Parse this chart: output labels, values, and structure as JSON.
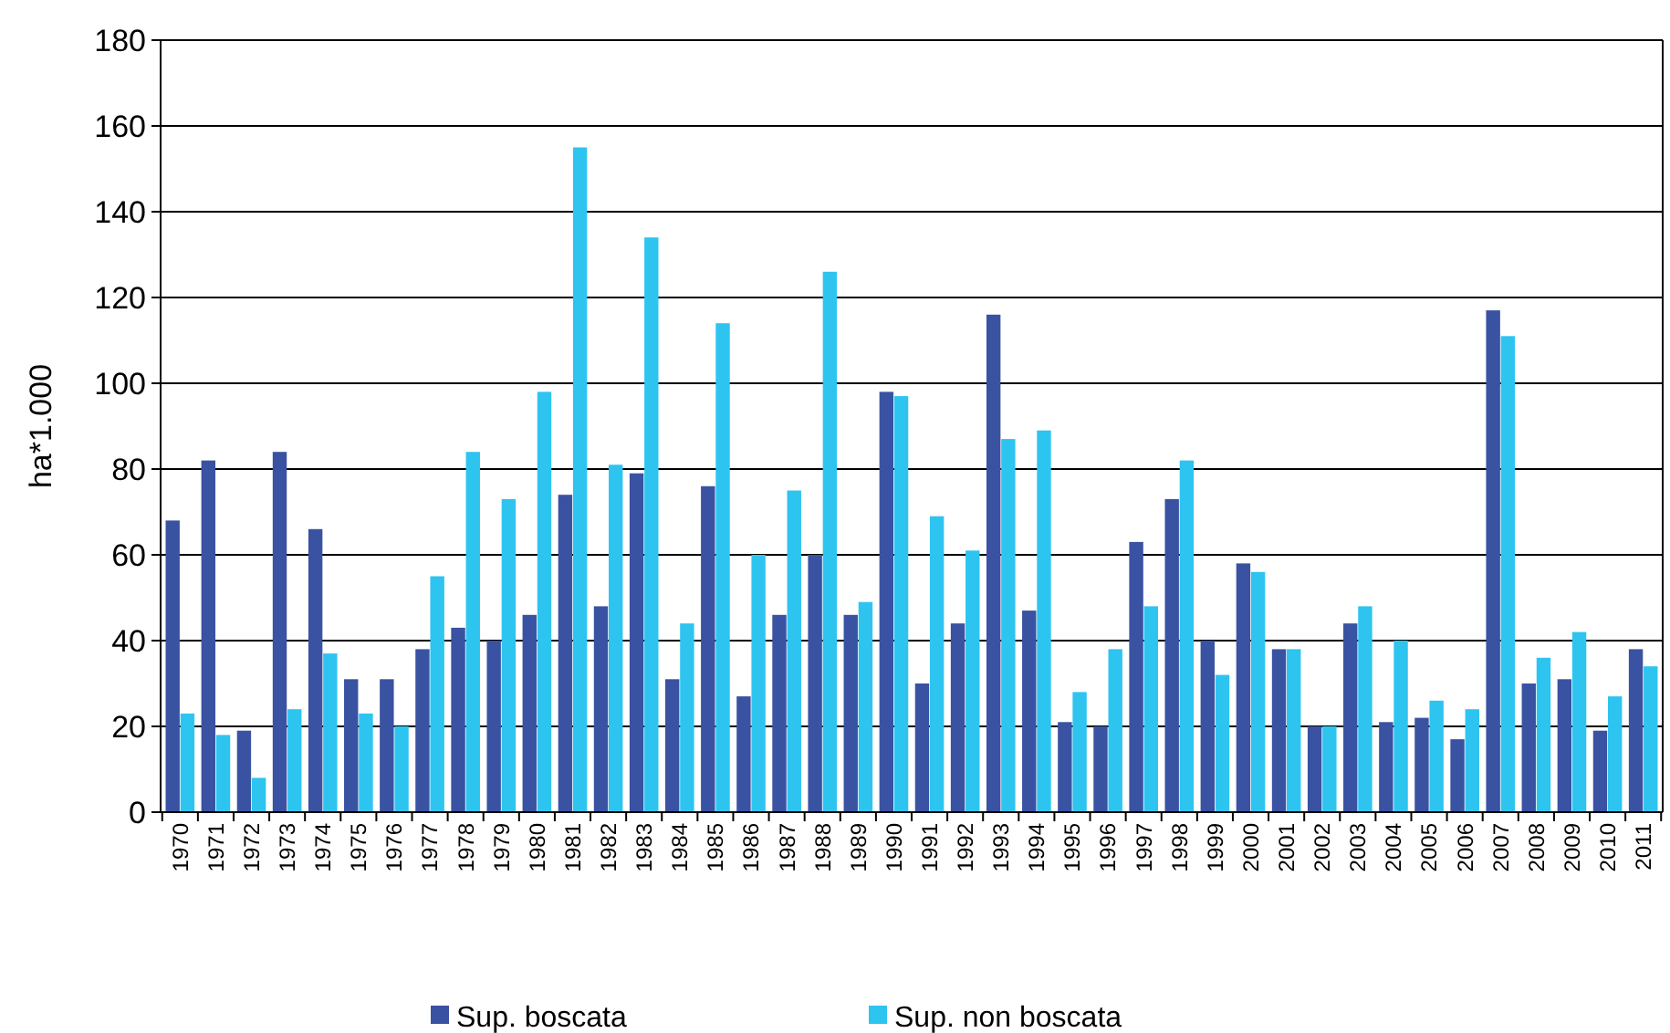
{
  "chart_data": {
    "type": "bar",
    "ylabel": "ha*1.000",
    "categories": [
      "1970",
      "1971",
      "1972",
      "1973",
      "1974",
      "1975",
      "1976",
      "1977",
      "1978",
      "1979",
      "1980",
      "1981",
      "1982",
      "1983",
      "1984",
      "1985",
      "1986",
      "1987",
      "1988",
      "1989",
      "1990",
      "1991",
      "1992",
      "1993",
      "1994",
      "1995",
      "1996",
      "1997",
      "1998",
      "1999",
      "2000",
      "2001",
      "2002",
      "2003",
      "2004",
      "2005",
      "2006",
      "2007",
      "2008",
      "2009",
      "2010",
      "2011"
    ],
    "series": [
      {
        "name": "Sup. boscata",
        "color": "#3a52a2",
        "values": [
          68,
          82,
          19,
          84,
          66,
          31,
          31,
          38,
          43,
          40,
          46,
          74,
          48,
          79,
          31,
          76,
          27,
          46,
          60,
          46,
          98,
          30,
          44,
          116,
          47,
          21,
          20,
          63,
          73,
          40,
          58,
          38,
          20,
          44,
          21,
          22,
          17,
          117,
          30,
          31,
          19,
          38
        ]
      },
      {
        "name": "Sup. non boscata",
        "color": "#2ec4f0",
        "values": [
          23,
          18,
          8,
          24,
          37,
          23,
          20,
          55,
          84,
          73,
          98,
          155,
          81,
          134,
          44,
          114,
          60,
          75,
          126,
          49,
          97,
          69,
          61,
          87,
          89,
          28,
          38,
          48,
          82,
          32,
          56,
          38,
          20,
          48,
          40,
          26,
          24,
          111,
          36,
          42,
          27,
          34
        ]
      }
    ],
    "ylim": [
      0,
      180
    ],
    "yticks": [
      0,
      20,
      40,
      60,
      80,
      100,
      120,
      140,
      160,
      180
    ],
    "grid": "y",
    "legend": "bottom"
  }
}
